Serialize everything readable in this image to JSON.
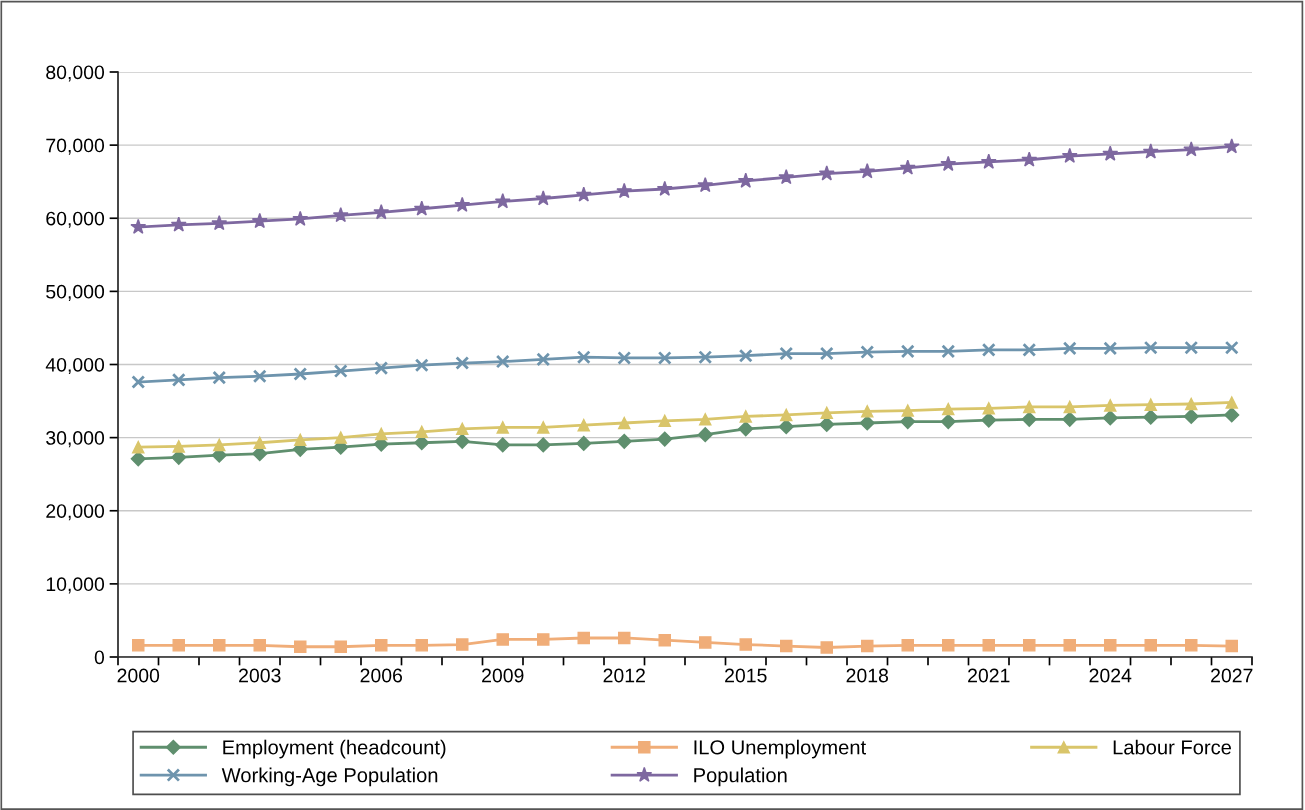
{
  "chart_data": {
    "type": "line",
    "categories": [
      "2000",
      null,
      null,
      "2003",
      null,
      null,
      "2006",
      null,
      null,
      "2009",
      null,
      null,
      "2012",
      null,
      null,
      "2015",
      null,
      null,
      "2018",
      null,
      null,
      "2021",
      null,
      null,
      "2024",
      null,
      null,
      "2027"
    ],
    "series": [
      {
        "name": "Employment (headcount)",
        "color": "#5f8f6e",
        "marker": "diamond",
        "values": [
          27100,
          27300,
          27600,
          27800,
          28400,
          28700,
          29100,
          29300,
          29500,
          29000,
          29000,
          29200,
          29500,
          29800,
          30400,
          31200,
          31500,
          31800,
          32000,
          32200,
          32200,
          32400,
          32500,
          32500,
          32700,
          32800,
          32900,
          33100
        ]
      },
      {
        "name": "ILO Unemployment",
        "color": "#f0ad78",
        "marker": "square",
        "values": [
          1600,
          1600,
          1600,
          1600,
          1400,
          1400,
          1600,
          1600,
          1700,
          2400,
          2400,
          2600,
          2600,
          2300,
          2000,
          1700,
          1500,
          1300,
          1500,
          1600,
          1600,
          1600,
          1600,
          1600,
          1600,
          1600,
          1600,
          1500
        ]
      },
      {
        "name": "Labour Force",
        "color": "#d9c56a",
        "marker": "triangle",
        "values": [
          28700,
          28800,
          29000,
          29300,
          29700,
          30000,
          30500,
          30800,
          31200,
          31400,
          31400,
          31700,
          32000,
          32300,
          32500,
          32900,
          33100,
          33400,
          33600,
          33700,
          33900,
          34000,
          34200,
          34200,
          34400,
          34500,
          34600,
          34800
        ]
      },
      {
        "name": "Working-Age Population",
        "color": "#6e94ad",
        "marker": "cross",
        "values": [
          37600,
          37900,
          38200,
          38400,
          38700,
          39100,
          39500,
          39900,
          40200,
          40400,
          40700,
          41000,
          40900,
          40900,
          41000,
          41200,
          41500,
          41500,
          41700,
          41800,
          41800,
          42000,
          42000,
          42200,
          42200,
          42300,
          42300,
          42300
        ]
      },
      {
        "name": "Population",
        "color": "#7e68a0",
        "marker": "star",
        "values": [
          58800,
          59100,
          59300,
          59600,
          59900,
          60400,
          60800,
          61300,
          61800,
          62300,
          62700,
          63200,
          63700,
          64000,
          64500,
          65100,
          65600,
          66100,
          66400,
          66900,
          67400,
          67700,
          68000,
          68500,
          68800,
          69100,
          69400,
          69800
        ]
      }
    ],
    "ylim": [
      0,
      80000
    ],
    "yticks": [
      {
        "value": 0,
        "label": "0"
      },
      {
        "value": 10000,
        "label": "10,000"
      },
      {
        "value": 20000,
        "label": "20,000"
      },
      {
        "value": 30000,
        "label": "30,000"
      },
      {
        "value": 40000,
        "label": "40,000"
      },
      {
        "value": 50000,
        "label": "50,000"
      },
      {
        "value": 60000,
        "label": "60,000"
      },
      {
        "value": 70000,
        "label": "70,000"
      },
      {
        "value": 80000,
        "label": "80,000"
      }
    ],
    "grid": "y",
    "legend": "bottom",
    "line_style": "solid"
  }
}
